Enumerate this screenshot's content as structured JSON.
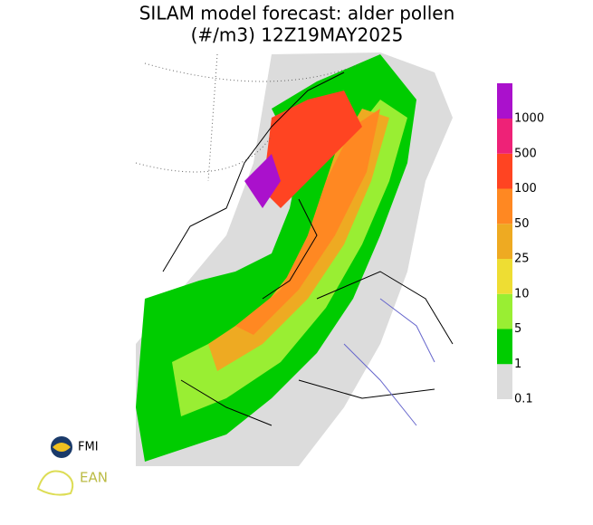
{
  "header": {
    "title_line1": "SILAM model forecast: alder pollen",
    "title_line2": "(#/m3) 12Z19MAY2025"
  },
  "legend": {
    "levels": [
      0.1,
      1,
      5,
      10,
      25,
      50,
      100,
      500,
      1000
    ],
    "colors": [
      "#dcdcdc",
      "#00cc00",
      "#99ee33",
      "#eedd33",
      "#eeaa22",
      "#ff8822",
      "#ff4422",
      "#ee2277",
      "#aa11cc"
    ]
  },
  "logos": {
    "fmi": "FMI",
    "ean": "EAN"
  }
}
